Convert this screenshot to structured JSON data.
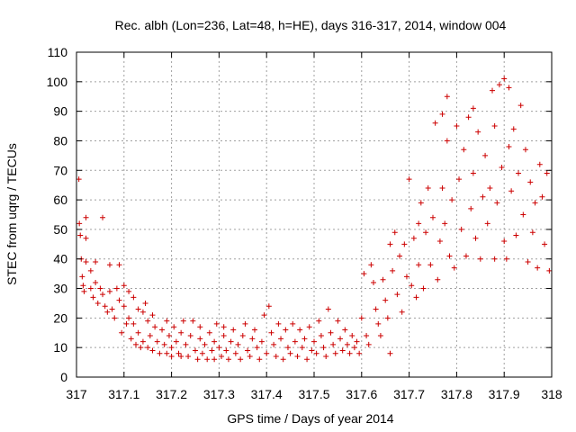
{
  "chart_data": {
    "type": "scatter",
    "title": "Rec. albh (Lon=236, Lat=48, h=HE), days 316-317, 2014, window 004",
    "xlabel": "GPS time / Days of year 2014",
    "ylabel": "STEC from uqrg / TECUs",
    "xlim": [
      317,
      318
    ],
    "ylim": [
      0,
      110
    ],
    "xticks": [
      "317",
      "317.1",
      "317.2",
      "317.3",
      "317.4",
      "317.5",
      "317.6",
      "317.7",
      "317.8",
      "317.9",
      "318"
    ],
    "yticks": [
      "0",
      "10",
      "20",
      "30",
      "40",
      "50",
      "60",
      "70",
      "80",
      "90",
      "100",
      "110"
    ],
    "grid": true,
    "marker": "plus",
    "color": "#cc0000",
    "series": [
      {
        "points": [
          [
            317.005,
            67
          ],
          [
            317.006,
            52
          ],
          [
            317.008,
            48
          ],
          [
            317.01,
            40
          ],
          [
            317.012,
            34
          ],
          [
            317.014,
            31
          ],
          [
            317.016,
            29
          ],
          [
            317.02,
            54
          ],
          [
            317.02,
            47
          ],
          [
            317.02,
            39
          ],
          [
            317.03,
            36
          ],
          [
            317.03,
            30
          ],
          [
            317.035,
            27
          ],
          [
            317.04,
            39
          ],
          [
            317.04,
            32
          ],
          [
            317.045,
            25
          ],
          [
            317.05,
            30
          ],
          [
            317.055,
            54
          ],
          [
            317.055,
            28
          ],
          [
            317.06,
            24
          ],
          [
            317.065,
            22
          ],
          [
            317.07,
            38
          ],
          [
            317.07,
            29
          ],
          [
            317.075,
            23
          ],
          [
            317.08,
            20
          ],
          [
            317.085,
            30
          ],
          [
            317.09,
            38
          ],
          [
            317.09,
            26
          ],
          [
            317.095,
            15
          ],
          [
            317.1,
            31
          ],
          [
            317.1,
            24
          ],
          [
            317.105,
            18
          ],
          [
            317.11,
            29
          ],
          [
            317.11,
            20
          ],
          [
            317.115,
            13
          ],
          [
            317.12,
            27
          ],
          [
            317.12,
            18
          ],
          [
            317.125,
            11
          ],
          [
            317.13,
            23
          ],
          [
            317.13,
            15
          ],
          [
            317.135,
            10
          ],
          [
            317.14,
            22
          ],
          [
            317.14,
            12
          ],
          [
            317.145,
            25
          ],
          [
            317.15,
            19
          ],
          [
            317.15,
            10
          ],
          [
            317.155,
            14
          ],
          [
            317.16,
            21
          ],
          [
            317.16,
            9
          ],
          [
            317.165,
            17
          ],
          [
            317.17,
            12
          ],
          [
            317.175,
            8
          ],
          [
            317.18,
            16
          ],
          [
            317.185,
            11
          ],
          [
            317.19,
            19
          ],
          [
            317.19,
            8
          ],
          [
            317.195,
            14
          ],
          [
            317.2,
            10
          ],
          [
            317.2,
            7
          ],
          [
            317.205,
            17
          ],
          [
            317.21,
            12
          ],
          [
            317.215,
            8
          ],
          [
            317.22,
            15
          ],
          [
            317.22,
            7
          ],
          [
            317.225,
            19
          ],
          [
            317.23,
            11
          ],
          [
            317.235,
            7
          ],
          [
            317.24,
            14
          ],
          [
            317.245,
            19
          ],
          [
            317.25,
            9
          ],
          [
            317.255,
            6
          ],
          [
            317.26,
            13
          ],
          [
            317.26,
            17
          ],
          [
            317.265,
            8
          ],
          [
            317.27,
            11
          ],
          [
            317.275,
            6
          ],
          [
            317.28,
            15
          ],
          [
            317.285,
            9
          ],
          [
            317.29,
            12
          ],
          [
            317.29,
            6
          ],
          [
            317.295,
            18
          ],
          [
            317.3,
            10
          ],
          [
            317.305,
            7
          ],
          [
            317.31,
            14
          ],
          [
            317.31,
            17
          ],
          [
            317.315,
            9
          ],
          [
            317.32,
            6
          ],
          [
            317.325,
            12
          ],
          [
            317.33,
            16
          ],
          [
            317.335,
            8
          ],
          [
            317.34,
            11
          ],
          [
            317.345,
            6
          ],
          [
            317.35,
            14
          ],
          [
            317.355,
            18
          ],
          [
            317.36,
            9
          ],
          [
            317.365,
            7
          ],
          [
            317.37,
            13
          ],
          [
            317.375,
            16
          ],
          [
            317.38,
            10
          ],
          [
            317.385,
            6
          ],
          [
            317.39,
            12
          ],
          [
            317.395,
            21
          ],
          [
            317.4,
            8
          ],
          [
            317.405,
            24
          ],
          [
            317.41,
            15
          ],
          [
            317.415,
            11
          ],
          [
            317.42,
            7
          ],
          [
            317.425,
            18
          ],
          [
            317.43,
            13
          ],
          [
            317.435,
            6
          ],
          [
            317.44,
            16
          ],
          [
            317.445,
            10
          ],
          [
            317.45,
            8
          ],
          [
            317.455,
            18
          ],
          [
            317.46,
            12
          ],
          [
            317.465,
            7
          ],
          [
            317.47,
            16
          ],
          [
            317.475,
            10
          ],
          [
            317.48,
            13
          ],
          [
            317.485,
            6
          ],
          [
            317.49,
            17
          ],
          [
            317.495,
            9
          ],
          [
            317.5,
            12
          ],
          [
            317.505,
            8
          ],
          [
            317.51,
            19
          ],
          [
            317.515,
            14
          ],
          [
            317.52,
            10
          ],
          [
            317.525,
            7
          ],
          [
            317.53,
            23
          ],
          [
            317.535,
            15
          ],
          [
            317.54,
            11
          ],
          [
            317.545,
            8
          ],
          [
            317.55,
            19
          ],
          [
            317.555,
            13
          ],
          [
            317.56,
            9
          ],
          [
            317.565,
            16
          ],
          [
            317.57,
            11
          ],
          [
            317.575,
            8
          ],
          [
            317.58,
            14
          ],
          [
            317.585,
            10
          ],
          [
            317.59,
            12
          ],
          [
            317.595,
            8
          ],
          [
            317.6,
            20
          ],
          [
            317.605,
            35
          ],
          [
            317.61,
            14
          ],
          [
            317.615,
            11
          ],
          [
            317.62,
            38
          ],
          [
            317.625,
            32
          ],
          [
            317.63,
            23
          ],
          [
            317.635,
            18
          ],
          [
            317.64,
            14
          ],
          [
            317.645,
            33
          ],
          [
            317.65,
            26
          ],
          [
            317.655,
            20
          ],
          [
            317.66,
            45
          ],
          [
            317.66,
            8
          ],
          [
            317.665,
            36
          ],
          [
            317.67,
            49
          ],
          [
            317.675,
            28
          ],
          [
            317.68,
            41
          ],
          [
            317.685,
            22
          ],
          [
            317.69,
            45
          ],
          [
            317.695,
            34
          ],
          [
            317.7,
            67
          ],
          [
            317.705,
            31
          ],
          [
            317.71,
            47
          ],
          [
            317.715,
            27
          ],
          [
            317.72,
            52
          ],
          [
            317.72,
            38
          ],
          [
            317.725,
            59
          ],
          [
            317.73,
            30
          ],
          [
            317.735,
            49
          ],
          [
            317.74,
            64
          ],
          [
            317.745,
            38
          ],
          [
            317.75,
            54
          ],
          [
            317.755,
            86
          ],
          [
            317.76,
            33
          ],
          [
            317.765,
            46
          ],
          [
            317.77,
            89
          ],
          [
            317.77,
            64
          ],
          [
            317.775,
            52
          ],
          [
            317.78,
            95
          ],
          [
            317.78,
            80
          ],
          [
            317.785,
            41
          ],
          [
            317.79,
            60
          ],
          [
            317.795,
            37
          ],
          [
            317.8,
            85
          ],
          [
            317.805,
            67
          ],
          [
            317.81,
            50
          ],
          [
            317.815,
            77
          ],
          [
            317.82,
            41
          ],
          [
            317.825,
            88
          ],
          [
            317.83,
            57
          ],
          [
            317.835,
            91
          ],
          [
            317.835,
            69
          ],
          [
            317.84,
            47
          ],
          [
            317.845,
            83
          ],
          [
            317.85,
            40
          ],
          [
            317.855,
            61
          ],
          [
            317.86,
            75
          ],
          [
            317.865,
            52
          ],
          [
            317.87,
            64
          ],
          [
            317.875,
            97
          ],
          [
            317.88,
            40
          ],
          [
            317.88,
            85
          ],
          [
            317.885,
            59
          ],
          [
            317.89,
            99
          ],
          [
            317.895,
            71
          ],
          [
            317.9,
            101
          ],
          [
            317.9,
            46
          ],
          [
            317.905,
            40
          ],
          [
            317.91,
            98
          ],
          [
            317.91,
            78
          ],
          [
            317.915,
            63
          ],
          [
            317.92,
            84
          ],
          [
            317.925,
            48
          ],
          [
            317.93,
            69
          ],
          [
            317.935,
            92
          ],
          [
            317.94,
            55
          ],
          [
            317.945,
            77
          ],
          [
            317.95,
            39
          ],
          [
            317.955,
            66
          ],
          [
            317.96,
            49
          ],
          [
            317.965,
            59
          ],
          [
            317.97,
            37
          ],
          [
            317.975,
            72
          ],
          [
            317.98,
            61
          ],
          [
            317.985,
            45
          ],
          [
            317.99,
            69
          ],
          [
            317.995,
            36
          ]
        ]
      }
    ]
  }
}
